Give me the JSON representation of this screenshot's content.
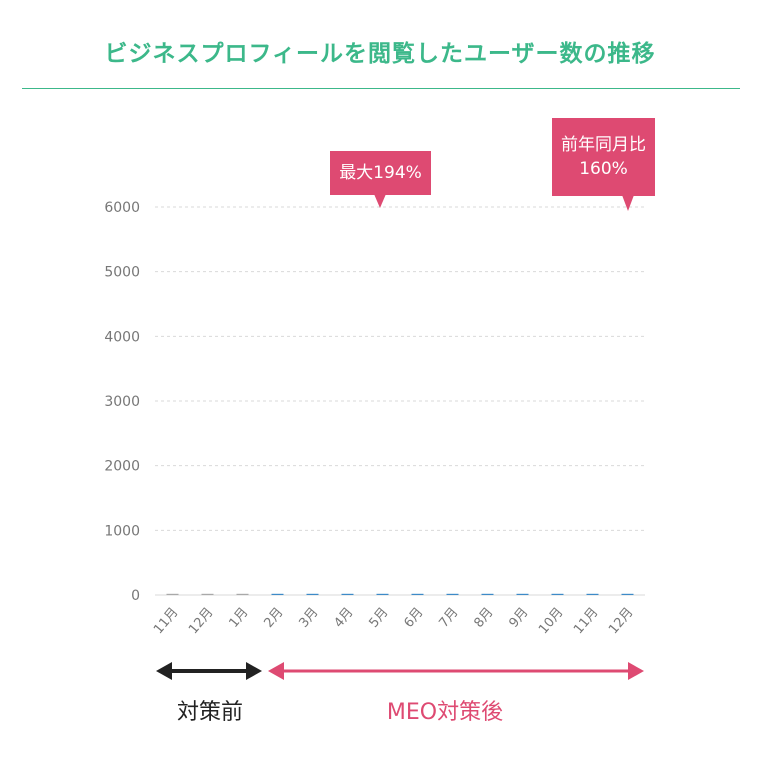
{
  "title": "ビジネスプロフィールを閲覧したユーザー数の推移",
  "colors": {
    "title": "#3cb88a",
    "accent": "#de4a72",
    "pre_arrow": "#222222",
    "bar_pre": "#a9a9a9",
    "bar_post": "#3d8bc8",
    "grid": "#d9d9d9",
    "tick": "#777777"
  },
  "callouts": {
    "max": "最大194%",
    "yoy_line1": "前年同月比",
    "yoy_line2": "160%"
  },
  "periods": {
    "before": "対策前",
    "after": "MEO対策後"
  },
  "chart_data": {
    "type": "bar",
    "title": "ビジネスプロフィールを閲覧したユーザー数の推移",
    "xlabel": "",
    "ylabel": "",
    "categories": [
      "11月",
      "12月",
      "1月",
      "2月",
      "3月",
      "4月",
      "5月",
      "6月",
      "7月",
      "8月",
      "9月",
      "10月",
      "11月",
      "12月"
    ],
    "values": [
      0,
      0,
      0,
      0,
      0,
      0,
      0,
      0,
      0,
      0,
      0,
      0,
      0,
      0
    ],
    "yticks": [
      0,
      1000,
      2000,
      3000,
      4000,
      5000,
      6000
    ],
    "ylim": [
      0,
      6000
    ],
    "grid": true,
    "pre_count": 3
  }
}
